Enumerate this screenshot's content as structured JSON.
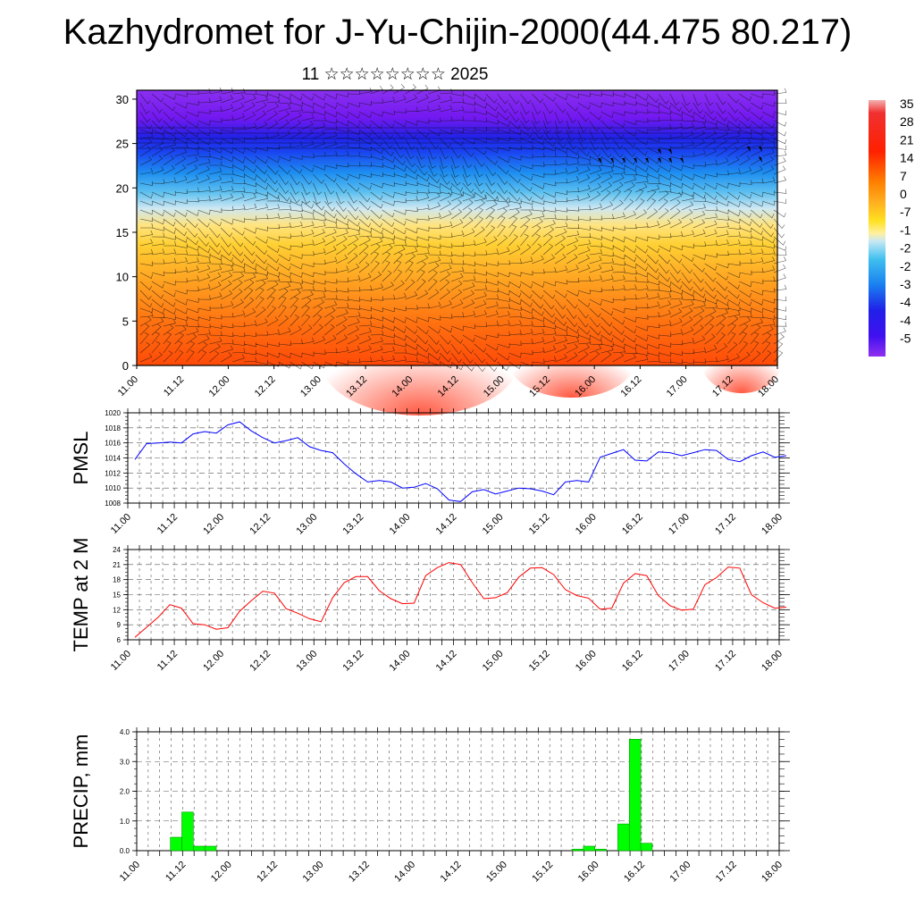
{
  "title": "Kazhydromet for J-Yu-Chijin-2000(44.475 80.217)",
  "subtitle": "11 ☆☆☆☆☆☆☆☆ 2025",
  "colors": {
    "pmsl_line": "#0000ff",
    "temp_line": "#ff0000",
    "precip_bar": "#00ff00",
    "precip_bar_edge": "#009900"
  },
  "chart_data": [
    {
      "type": "heatmap",
      "name": "vertical-cross-section",
      "title": "",
      "xlabel": "",
      "ylabel": "",
      "x_ticks": [
        "11.00",
        "11.12",
        "12.00",
        "12.12",
        "13.00",
        "13.12",
        "14.00",
        "14.12",
        "15.00",
        "15.12",
        "16.00",
        "16.12",
        "17.00",
        "17.12",
        "18.00"
      ],
      "y_ticks": [
        0,
        5,
        10,
        15,
        20,
        25,
        30
      ],
      "ylim": [
        0,
        31
      ],
      "colorbar_labels": [
        "35",
        "28",
        "21",
        "14",
        "7",
        "0",
        "-7",
        "-1",
        "-2",
        "-2",
        "-3",
        "-4",
        "-4",
        "-5"
      ],
      "overlay": "wind barbs"
    },
    {
      "type": "line",
      "name": "pmsl",
      "ylabel": "PMSL",
      "ylim": [
        1008,
        1020
      ],
      "y_ticks": [
        1008,
        1010,
        1012,
        1014,
        1016,
        1018,
        1020
      ],
      "x_ticks": [
        "11.00",
        "11.12",
        "12.00",
        "12.12",
        "13.00",
        "13.12",
        "14.00",
        "14.12",
        "15.00",
        "15.12",
        "16.00",
        "16.12",
        "17.00",
        "17.12",
        "18.00"
      ],
      "x_hours_step": 3,
      "values": [
        1013.8,
        1015.9,
        1016.0,
        1016.1,
        1016.0,
        1017.2,
        1017.5,
        1017.3,
        1018.4,
        1018.8,
        1017.6,
        1016.7,
        1016.0,
        1016.3,
        1016.7,
        1015.5,
        1015.0,
        1014.7,
        1013.2,
        1011.9,
        1010.8,
        1011.0,
        1010.8,
        1010.0,
        1010.1,
        1010.6,
        1009.9,
        1008.4,
        1008.2,
        1009.5,
        1009.8,
        1009.2,
        1009.6,
        1010.0,
        1009.9,
        1009.6,
        1009.1,
        1010.8,
        1011.0,
        1010.8,
        1014.1,
        1014.6,
        1015.1,
        1013.7,
        1013.6,
        1014.8,
        1014.7,
        1014.3,
        1014.7,
        1015.1,
        1015.0,
        1013.8,
        1013.5,
        1014.3,
        1014.8,
        1014.1,
        1014.3
      ]
    },
    {
      "type": "line",
      "name": "temp-2m",
      "ylabel": "TEMP at 2 M",
      "ylim": [
        6,
        24
      ],
      "y_ticks": [
        6,
        9,
        12,
        15,
        18,
        21,
        24
      ],
      "x_ticks": [
        "11.00",
        "11.12",
        "12.00",
        "12.12",
        "13.00",
        "13.12",
        "14.00",
        "14.12",
        "15.00",
        "15.12",
        "16.00",
        "16.12",
        "17.00",
        "17.12",
        "18.00"
      ],
      "x_hours_step": 3,
      "values": [
        6.5,
        8.5,
        10.5,
        13.0,
        12.3,
        9.2,
        9.0,
        8.1,
        8.4,
        11.7,
        13.8,
        15.7,
        15.3,
        12.2,
        11.3,
        10.2,
        9.6,
        14.4,
        17.4,
        18.6,
        18.6,
        15.8,
        14.2,
        13.2,
        13.3,
        18.8,
        20.4,
        21.4,
        21.0,
        17.4,
        14.2,
        14.4,
        15.4,
        18.5,
        20.3,
        20.4,
        19.0,
        16.0,
        14.8,
        14.3,
        12.1,
        12.3,
        17.3,
        19.2,
        18.8,
        14.8,
        12.8,
        11.9,
        12.1,
        17.0,
        18.4,
        20.5,
        20.3,
        15.0,
        13.4,
        12.3,
        12.5
      ]
    },
    {
      "type": "bar",
      "name": "precip",
      "ylabel": "PRECIP, mm",
      "ylim": [
        0,
        4
      ],
      "y_ticks": [
        "0.0",
        "1.0",
        "2.0",
        "3.0",
        "4.0"
      ],
      "x_ticks": [
        "11.00",
        "11.12",
        "12.00",
        "12.12",
        "13.00",
        "13.12",
        "14.00",
        "14.12",
        "15.00",
        "15.12",
        "16.00",
        "16.12",
        "17.00",
        "17.12",
        "18.00"
      ],
      "x_hours_step": 3,
      "values": [
        0,
        0,
        0.45,
        1.3,
        0.15,
        0.15,
        0,
        0,
        0,
        0,
        0,
        0,
        0,
        0,
        0,
        0,
        0,
        0,
        0,
        0,
        0,
        0,
        0,
        0,
        0,
        0,
        0,
        0,
        0,
        0,
        0,
        0,
        0,
        0,
        0,
        0,
        0,
        0.05,
        0.15,
        0.05,
        0,
        0.9,
        3.75,
        0.25,
        0,
        0,
        0,
        0,
        0,
        0,
        0,
        0,
        0,
        0,
        0,
        0
      ]
    }
  ]
}
